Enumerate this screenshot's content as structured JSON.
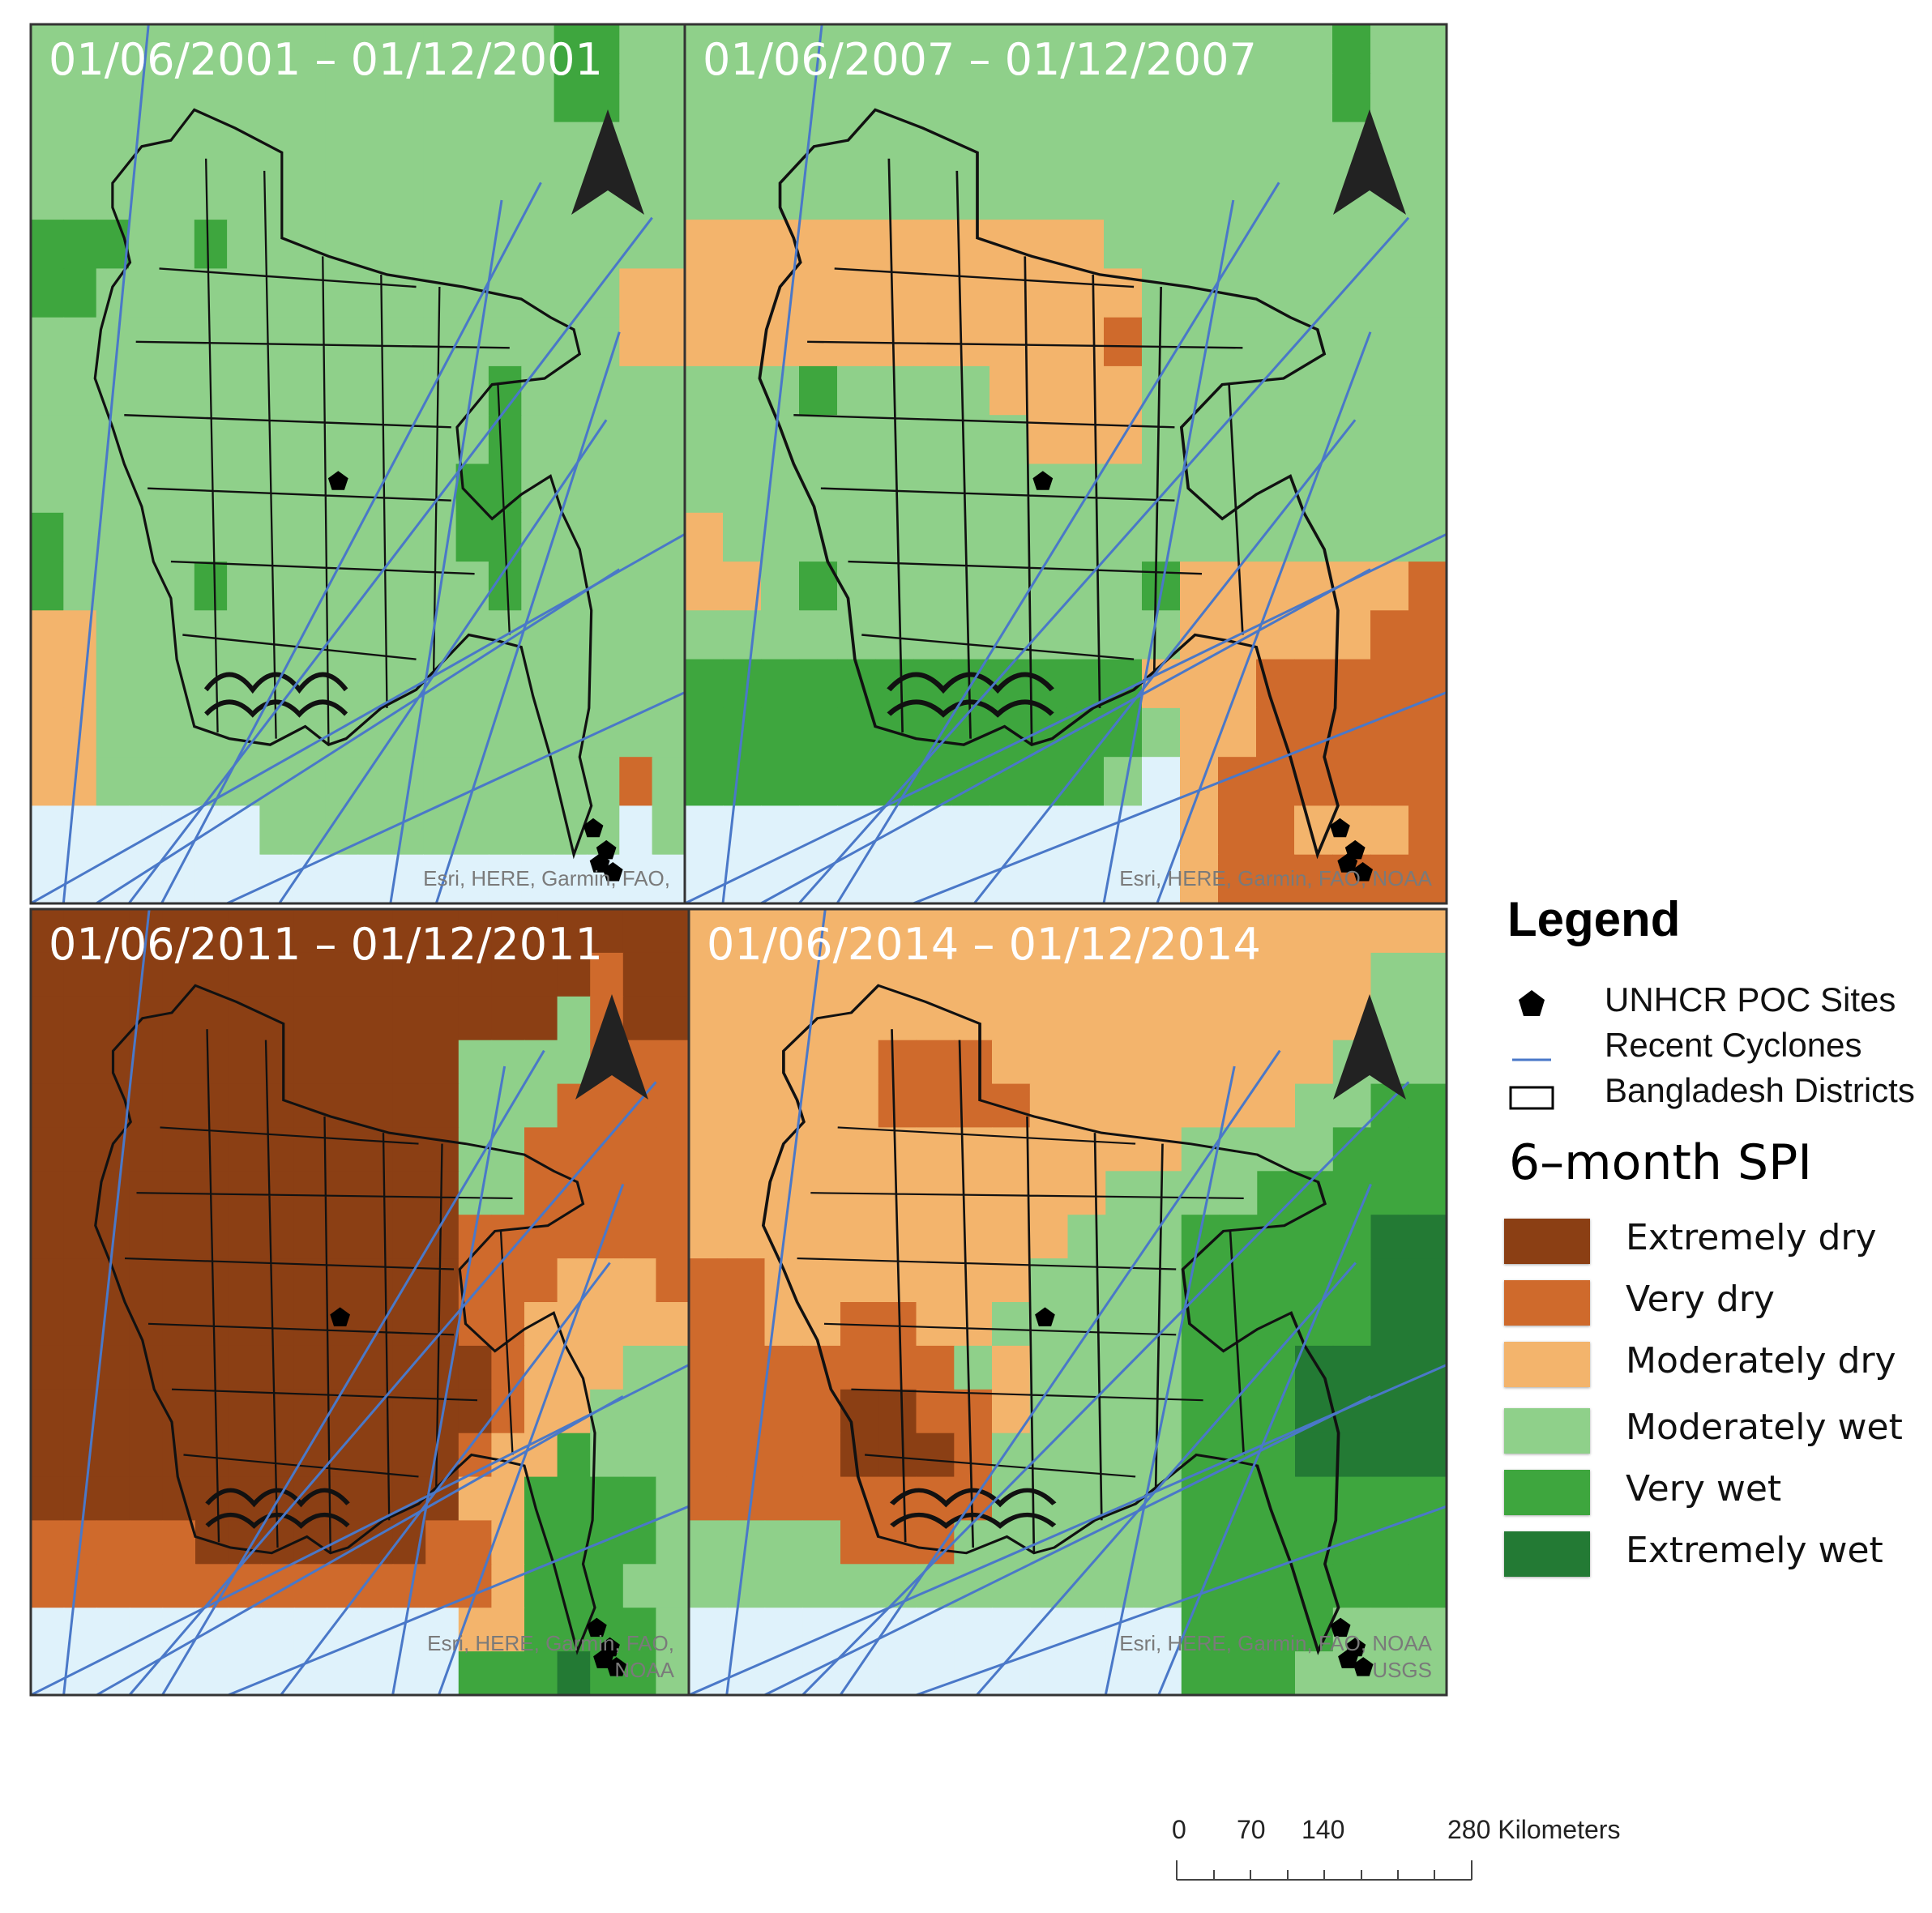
{
  "panels": [
    {
      "id": "2001",
      "date_range": "01/06/2001 – 01/12/2001",
      "attribution": "Esri, HERE, Garmin, FAO,",
      "attribution_line2": "",
      "grid": [
        "LLLLLLLLLLLLLLLLVVLL",
        "LLLLLLLLLLLLLLLLVVLL",
        "LLLLLLLLLLLLLLLLLLLL",
        "LLLLLLLLLLLLLLLLLLLL",
        "VVVLLVLLLLLLLLLLLLLL",
        "VVLLLLLLLLLLLLLLLLMM",
        "LLLLLLLLLLLLLLLLLLMM",
        "LLLLLLLLLLLLLLVLLLLL",
        "LLLLLLLLLLLLLLVLLLLL",
        "LLLLLLLLLLLLLVVLLLLL",
        "VLLLLLLLLLLLLVVLLLLL",
        "VLLLLVLLLLLLLLVLLLLL",
        "MMLLLLLLLLLLLLLLLLLL",
        "MMLLLLLLLLLLLLLLLLLL",
        "MMLLLLLLLLLLLLLLLLLL",
        "MMLLLLLLLLLLLLLLLLDL",
        "BBBBBBBLLLLLLLLLLLBL",
        "BBBBBBBBBBBBBBBBBBBB"
      ]
    },
    {
      "id": "2007",
      "date_range": "01/06/2007 – 01/12/2007",
      "attribution": "Esri, HERE, Garmin, FAO, NOAA",
      "attribution_line2": "",
      "grid": [
        "LLLLLLLLLLLLLLLLLVLL",
        "LLLLLLLLLLLLLLLLLVLL",
        "LLLLLLLLLLLLLLLLLLLL",
        "LLLLLLLLLLLLLLLLLLLL",
        "MMMMMMMMMMMLLLLLLLLL",
        "MMMMMMMMMMMMLLLLLLLL",
        "MMMMMMMMMMMDLLLLLLLL",
        "LLLVLLLLMMMMLLLLLLLL",
        "LLLLLLLLLMMMLLLLLLLL",
        "LLLLLLLLLLLLLLLLLLLL",
        "MLLLLLLLLLLLLLLLLLLL",
        "MMLVLLLLLLLLVMMMMMMD",
        "LLLLLLLLLLLLLMMMMMDD",
        "VVVVVVVVVVVVMMMDDDDD",
        "VVVVVVVVVVVVLMMDDDDD",
        "VVVVVVVVVVVLBMDDDDDD",
        "BBBBBBBBBBBBBMDDMMMD",
        "BBBBBBBBBBBBBMDDDDDD"
      ]
    },
    {
      "id": "2011",
      "date_range": "01/06/2011 – 01/12/2011",
      "attribution": "Esri, HERE, Garmin, FAO,",
      "attribution_line2": "NOAA",
      "grid": [
        "XXXXXXXXXXXXXXXXXXXX",
        "XXXXXXXXXXXXXXXXXDXX",
        "XXXXXXXXXXXXXXXXLDXX",
        "XXXXXXXXXXXXXLLLLDDD",
        "XXXXXXXXXXXXXLLLDDDD",
        "XXXXXXXXXXXXXLLDDDDD",
        "XXXXXXXXXXXXXLLDDDDD",
        "XXXXXXXXXXXXXDDDDDDD",
        "XXXXXXXXXXXXXDDDMMMD",
        "XXXXXXXXXXXXXDDMMMMM",
        "XXXXXXXXXXXXXXDMMMLL",
        "XXXXXXXXXXXXXXDMMLLL",
        "XXXXXXXXXXXXXDMMVLLL",
        "XXXXXXXXXXXXXMMVVVVL",
        "DDDDDXXXXXXXDDMVVVVL",
        "DDDDDDDDDDDDDDMVVVLL",
        "BBBBBBBBBBBBBMMVVVVL",
        "BBBBBBBBBBBBBVVVEVVL"
      ]
    },
    {
      "id": "2014",
      "date_range": "01/06/2014 – 01/12/2014",
      "attribution": "Esri, HERE, Garmin, FAO, NOAA",
      "attribution_line2": "USGS",
      "grid": [
        "MMMMMMMMMMMMMMMMMMMM",
        "MMMMMMMMMMMMMMMMMMLL",
        "MMMMMMMMMMMMMMMMMMLL",
        "MMMMMDDDMMMMMMMMMLLL",
        "MMMMMDDDDMMMMMMMLLVV",
        "MMMMMMMMMMMMMLLLLVVV",
        "MMMMMMMMMMMLLLLVVVVV",
        "MMMMMMMMMMLLLVVVVVEE",
        "DDMMMMMMMLLLLVVVVVEE",
        "DDMMDDMMLLLLLVVVVVEE",
        "DDDDDDDLMLLLLVVVEEEE",
        "DDDDXXDDMLLLLVVVEEEE",
        "DDDDXXXDLLLLLVVVEEEE",
        "DDDDDDDDLLLLLVVVVVVV",
        "LLLLDDDLLLLLLVVVVVVV",
        "LLLLLLLLLLLLLVVVVVVV",
        "BBBBBBBBBBBBBVVVVLLL",
        "BBBBBBBBBBBBBVVVLLLL"
      ]
    }
  ],
  "colors": {
    "X": "#8b3f14",
    "D": "#cf6a2c",
    "M": "#f3b46c",
    "L": "#8fd08a",
    "V": "#3ea63e",
    "E": "#237a34",
    "B": "#dff2fb",
    "cyclone": "#4a78c8",
    "district_outline": "#111111"
  },
  "legend": {
    "title": "Legend",
    "symbols": [
      {
        "name": "poc-site",
        "icon": "pentagon-icon",
        "label": "UNHCR POC Sites"
      },
      {
        "name": "cyclone",
        "icon": "line-icon",
        "label": "Recent Cyclones"
      },
      {
        "name": "district",
        "icon": "rectangle-outline-icon",
        "label": "Bangladesh Districts"
      }
    ],
    "spi_title": "6–month SPI",
    "classes": [
      {
        "key": "X",
        "label": "Extremely dry",
        "color": "#8b3f14"
      },
      {
        "key": "D",
        "label": "Very dry",
        "color": "#cf6a2c"
      },
      {
        "key": "M",
        "label": "Moderately dry",
        "color": "#f3b46c"
      },
      {
        "key": "L",
        "label": "Moderately wet",
        "color": "#8fd08a"
      },
      {
        "key": "V",
        "label": "Very wet",
        "color": "#3ea63e"
      },
      {
        "key": "E",
        "label": "Extremely wet",
        "color": "#237a34"
      }
    ]
  },
  "north_arrow": {
    "icon": "north-arrow-icon",
    "label": "N"
  },
  "scale_bar": {
    "labels": [
      "0",
      "70",
      "140",
      "280 Kilometers"
    ]
  }
}
